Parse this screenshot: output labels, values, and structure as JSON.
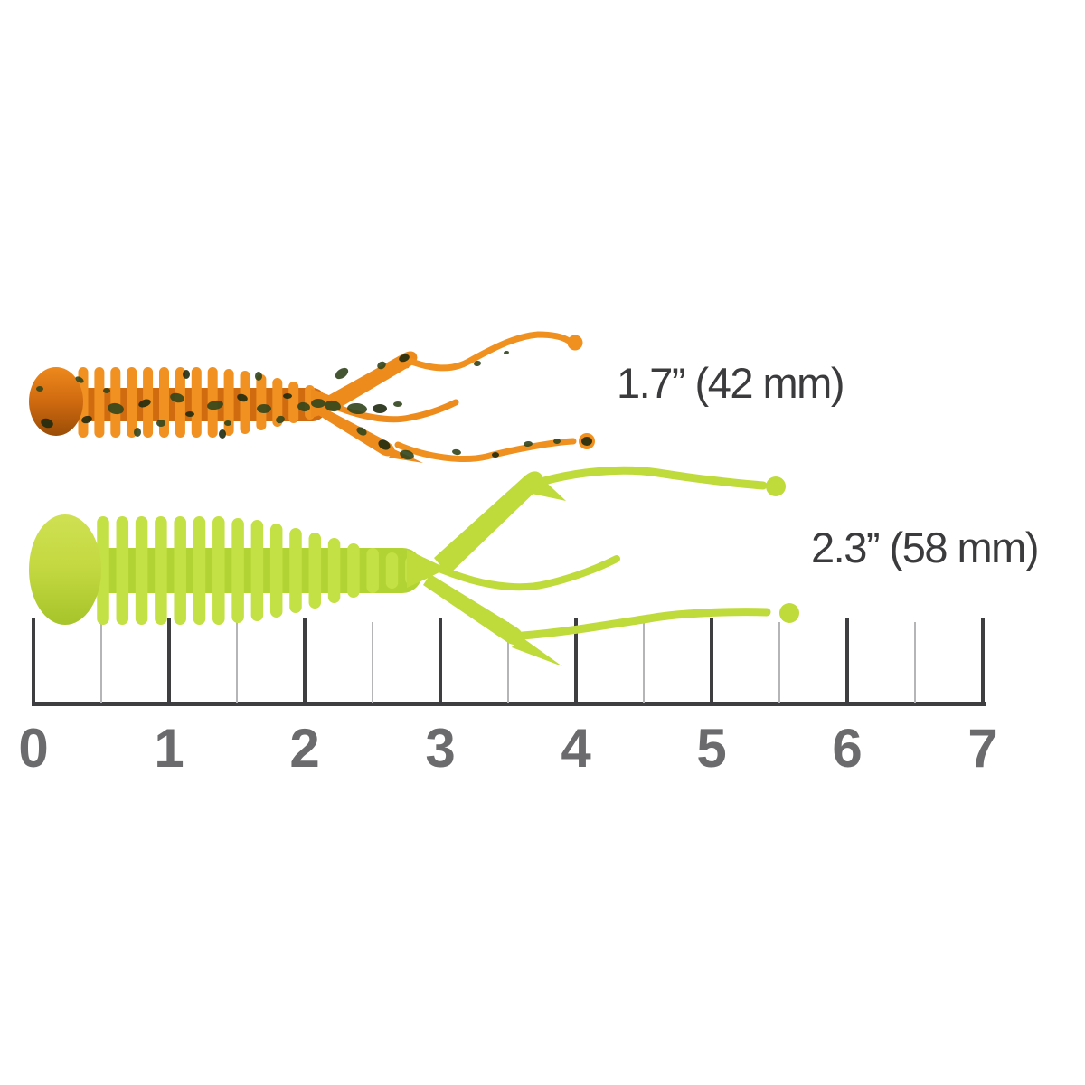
{
  "lures": [
    {
      "name": "orange fleck lure",
      "size_label": "1.7” (42 mm)",
      "length_inches": "1.7”",
      "length_mm": "42 mm",
      "body_color": "#ee8b1d",
      "fleck_color": "#31451c"
    },
    {
      "name": "chartreuse lure",
      "size_label": "2.3” (58 mm)",
      "length_inches": "2.3”",
      "length_mm": "58 mm",
      "body_color": "#bedb3b"
    }
  ],
  "ruler": {
    "unit_labels": [
      "0",
      "1",
      "2",
      "3",
      "4",
      "5",
      "6",
      "7"
    ],
    "major_tick_color": "#3e3e40",
    "minor_tick_color": "#b5b5b7",
    "number_color": "#6b6b6d"
  },
  "label_text_color": "#3b3b3d"
}
